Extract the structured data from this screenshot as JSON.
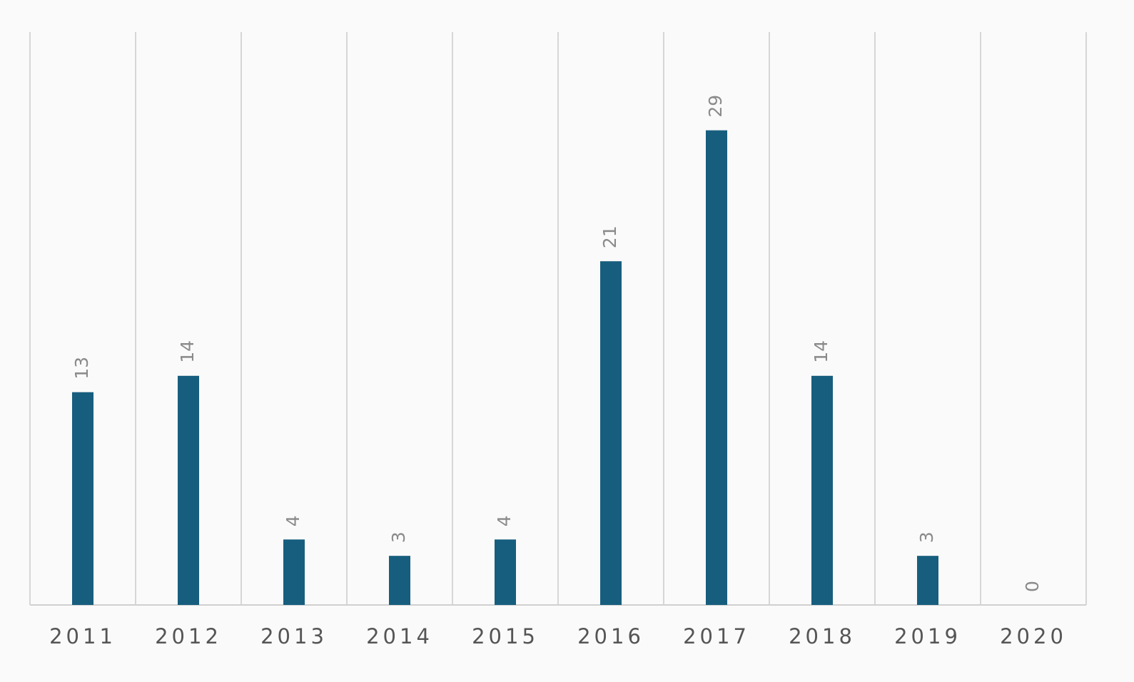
{
  "chart_data": {
    "type": "bar",
    "categories": [
      "2011",
      "2012",
      "2013",
      "2014",
      "2015",
      "2016",
      "2017",
      "2018",
      "2019",
      "2020"
    ],
    "values": [
      13,
      14,
      4,
      3,
      4,
      21,
      29,
      14,
      3,
      0
    ],
    "color": "#175e7e",
    "ylim": [
      0,
      35
    ],
    "grid": true
  }
}
